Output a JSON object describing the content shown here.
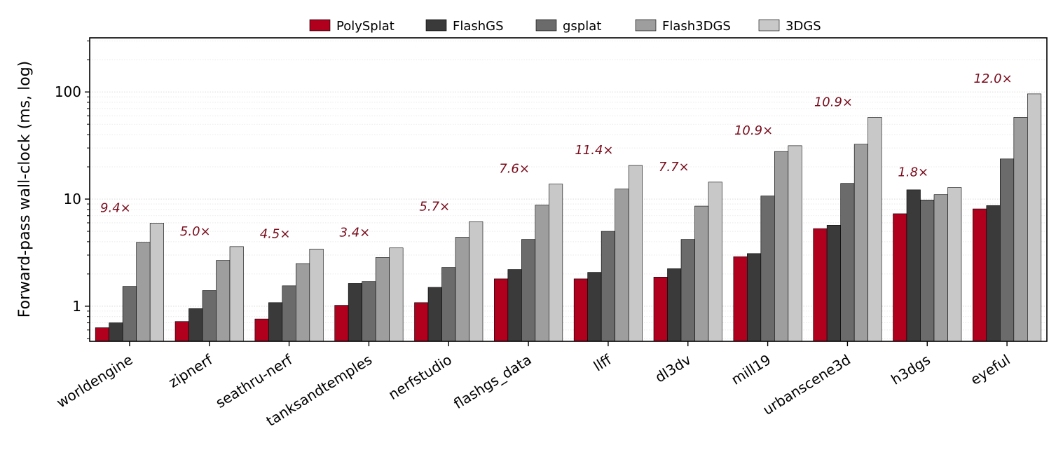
{
  "chart_data": {
    "type": "bar",
    "scale": "log",
    "title": "",
    "xlabel": "",
    "ylabel": "Forward-pass wall-clock (ms, log)",
    "ylim": [
      0.47,
      320
    ],
    "yticks": [
      1,
      10,
      100
    ],
    "ytick_labels": [
      "1",
      "10",
      "100"
    ],
    "grid": "horizontal-minor-dotted",
    "legend_position": "top-center",
    "categories": [
      "worldengine",
      "zipnerf",
      "seathru-nerf",
      "tanksandtemples",
      "nerfstudio",
      "flashgs_data",
      "llff",
      "dl3dv",
      "mill19",
      "urbanscene3d",
      "h3dgs",
      "eyeful"
    ],
    "series": [
      {
        "name": "PolySplat",
        "color": "#b0001e",
        "values": [
          0.63,
          0.72,
          0.76,
          1.02,
          1.08,
          1.8,
          1.8,
          1.87,
          2.9,
          5.3,
          7.3,
          8.1
        ]
      },
      {
        "name": "FlashGS",
        "color": "#3a3a3a",
        "values": [
          0.7,
          0.95,
          1.08,
          1.63,
          1.5,
          2.2,
          2.07,
          2.24,
          3.1,
          5.7,
          12.2,
          8.7
        ]
      },
      {
        "name": "gsplat",
        "color": "#6b6b6b",
        "values": [
          1.53,
          1.4,
          1.55,
          1.7,
          2.3,
          4.2,
          5.0,
          4.2,
          10.7,
          14.0,
          9.8,
          23.7
        ]
      },
      {
        "name": "Flash3DGS",
        "color": "#9e9e9e",
        "values": [
          3.95,
          2.67,
          2.5,
          2.85,
          4.4,
          8.8,
          12.4,
          8.6,
          27.8,
          32.5,
          11.0,
          58.0
        ]
      },
      {
        "name": "3DGS",
        "color": "#c8c8c8",
        "values": [
          5.95,
          3.6,
          3.42,
          3.5,
          6.15,
          13.8,
          20.6,
          14.4,
          31.5,
          58.0,
          12.8,
          96.0
        ]
      }
    ],
    "annotations": [
      "9.4×",
      "5.0×",
      "4.5×",
      "3.4×",
      "5.7×",
      "7.6×",
      "11.4×",
      "7.7×",
      "10.9×",
      "10.9×",
      "1.8×",
      "12.0×"
    ]
  }
}
